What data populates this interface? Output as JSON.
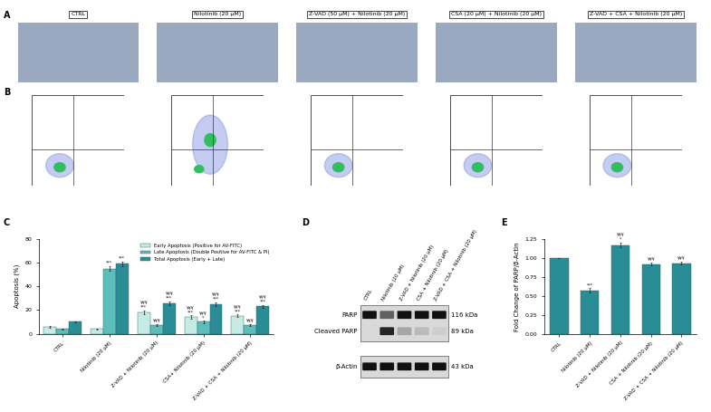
{
  "microscopy": {
    "panel_label": "A",
    "conditions": [
      "CTRL",
      "Nilotinib (20 µM)",
      "Z-VAD (50 µM) + Nilotinib (20 µM)",
      "CSA (20 µM) + Nilotinib (20 µM)",
      "Z-VAD + CSA + Nilotinib (20 µM)"
    ]
  },
  "flow_cytometry": {
    "panel_label": "B"
  },
  "chart_data": [
    {
      "type": "bar",
      "panel_label": "C",
      "y_label": "Apoptosis (%)",
      "categories": [
        "CTRL",
        "Nilotinib (20 µM)",
        "Z-VAD + Nilotinib (20 µM)",
        "CSA+ Nilotinib (20 µM)",
        "Z-VAD + CSA + Nilotinib (20 µM)"
      ],
      "series": [
        {
          "name": "Early Apoptosis (Positive for AV-FITC)",
          "color": "#c6ebe5",
          "values": [
            6,
            4,
            18,
            14,
            15
          ],
          "errors": [
            0.8,
            0.5,
            1.8,
            1.5,
            1.2
          ],
          "significance": [
            null,
            null,
            "¥¥¥\n***",
            "¥¥¥\n***",
            "¥¥¥\n***"
          ]
        },
        {
          "name": "Late Apoptosis (Double Positive for AV-FITC & PI)",
          "color": "#5cbdb9",
          "values": [
            4,
            55,
            7,
            10,
            7
          ],
          "errors": [
            0.5,
            2.0,
            0.8,
            1.0,
            0.8
          ],
          "significance": [
            null,
            "***",
            "¥¥¥",
            "¥¥¥\n*",
            "¥¥¥"
          ]
        },
        {
          "name": "Total Apoptosis (Early + Late)",
          "color": "#2a8c94",
          "values": [
            10,
            59,
            26,
            25,
            23
          ],
          "errors": [
            0.6,
            2.0,
            1.5,
            1.5,
            1.2
          ],
          "significance": [
            null,
            "***",
            "¥¥¥\n***",
            "¥¥¥\n***",
            "¥¥¥\n***"
          ]
        }
      ],
      "ylim": [
        0,
        80
      ],
      "yticks": [
        0,
        20,
        40,
        60,
        80
      ],
      "legend": "upper right"
    },
    {
      "type": "bar",
      "panel_label": "E",
      "y_label": "Fold Change of PARP/β-Actin",
      "categories": [
        "CTRL",
        "Nilotinib (20 µM)",
        "Z-VAD + Nilotinib (20 µM)",
        "CSA + Nilotinib (20 µM)",
        "Z-VAD + CSA + Nilotinib (20 µM)"
      ],
      "values": [
        1.0,
        0.57,
        1.17,
        0.92,
        0.93
      ],
      "errors": [
        0.0,
        0.03,
        0.03,
        0.02,
        0.02
      ],
      "significance": [
        null,
        "***",
        "¥¥¥\n*",
        "¥¥¥",
        "¥¥¥"
      ],
      "color": "#2a8c94",
      "ylim": [
        0,
        1.25
      ],
      "yticks": [
        {
          "value": 0,
          "label": "0.00"
        },
        {
          "value": 0.25,
          "label": "0.25"
        },
        {
          "value": 0.5,
          "label": "0.50"
        },
        {
          "value": 0.75,
          "label": "0.75"
        },
        {
          "value": 1.0,
          "label": "1.00"
        },
        {
          "value": 1.25,
          "label": "1.25"
        }
      ]
    }
  ],
  "western_blot": {
    "panel_label": "D",
    "lanes": [
      "CTRL",
      "Nilotinib (20 µM)",
      "Z-VAD + Nilotinib (20 µM)",
      "CSA + Nilotinib (20 µM)",
      "Z-VAD + CSA + Nilotinib (20 µM)"
    ],
    "rows": [
      {
        "name": "PARP",
        "size": "116 kDa",
        "intensity": [
          1.0,
          0.6,
          1.0,
          1.0,
          1.0
        ]
      },
      {
        "name": "Cleaved PARP",
        "size": "89 kDa",
        "intensity": [
          0.0,
          0.9,
          0.25,
          0.15,
          0.05
        ]
      },
      {
        "name": "β-Actin",
        "size": "43 kDa",
        "intensity": [
          1.0,
          1.0,
          1.0,
          1.0,
          1.0
        ]
      }
    ]
  }
}
